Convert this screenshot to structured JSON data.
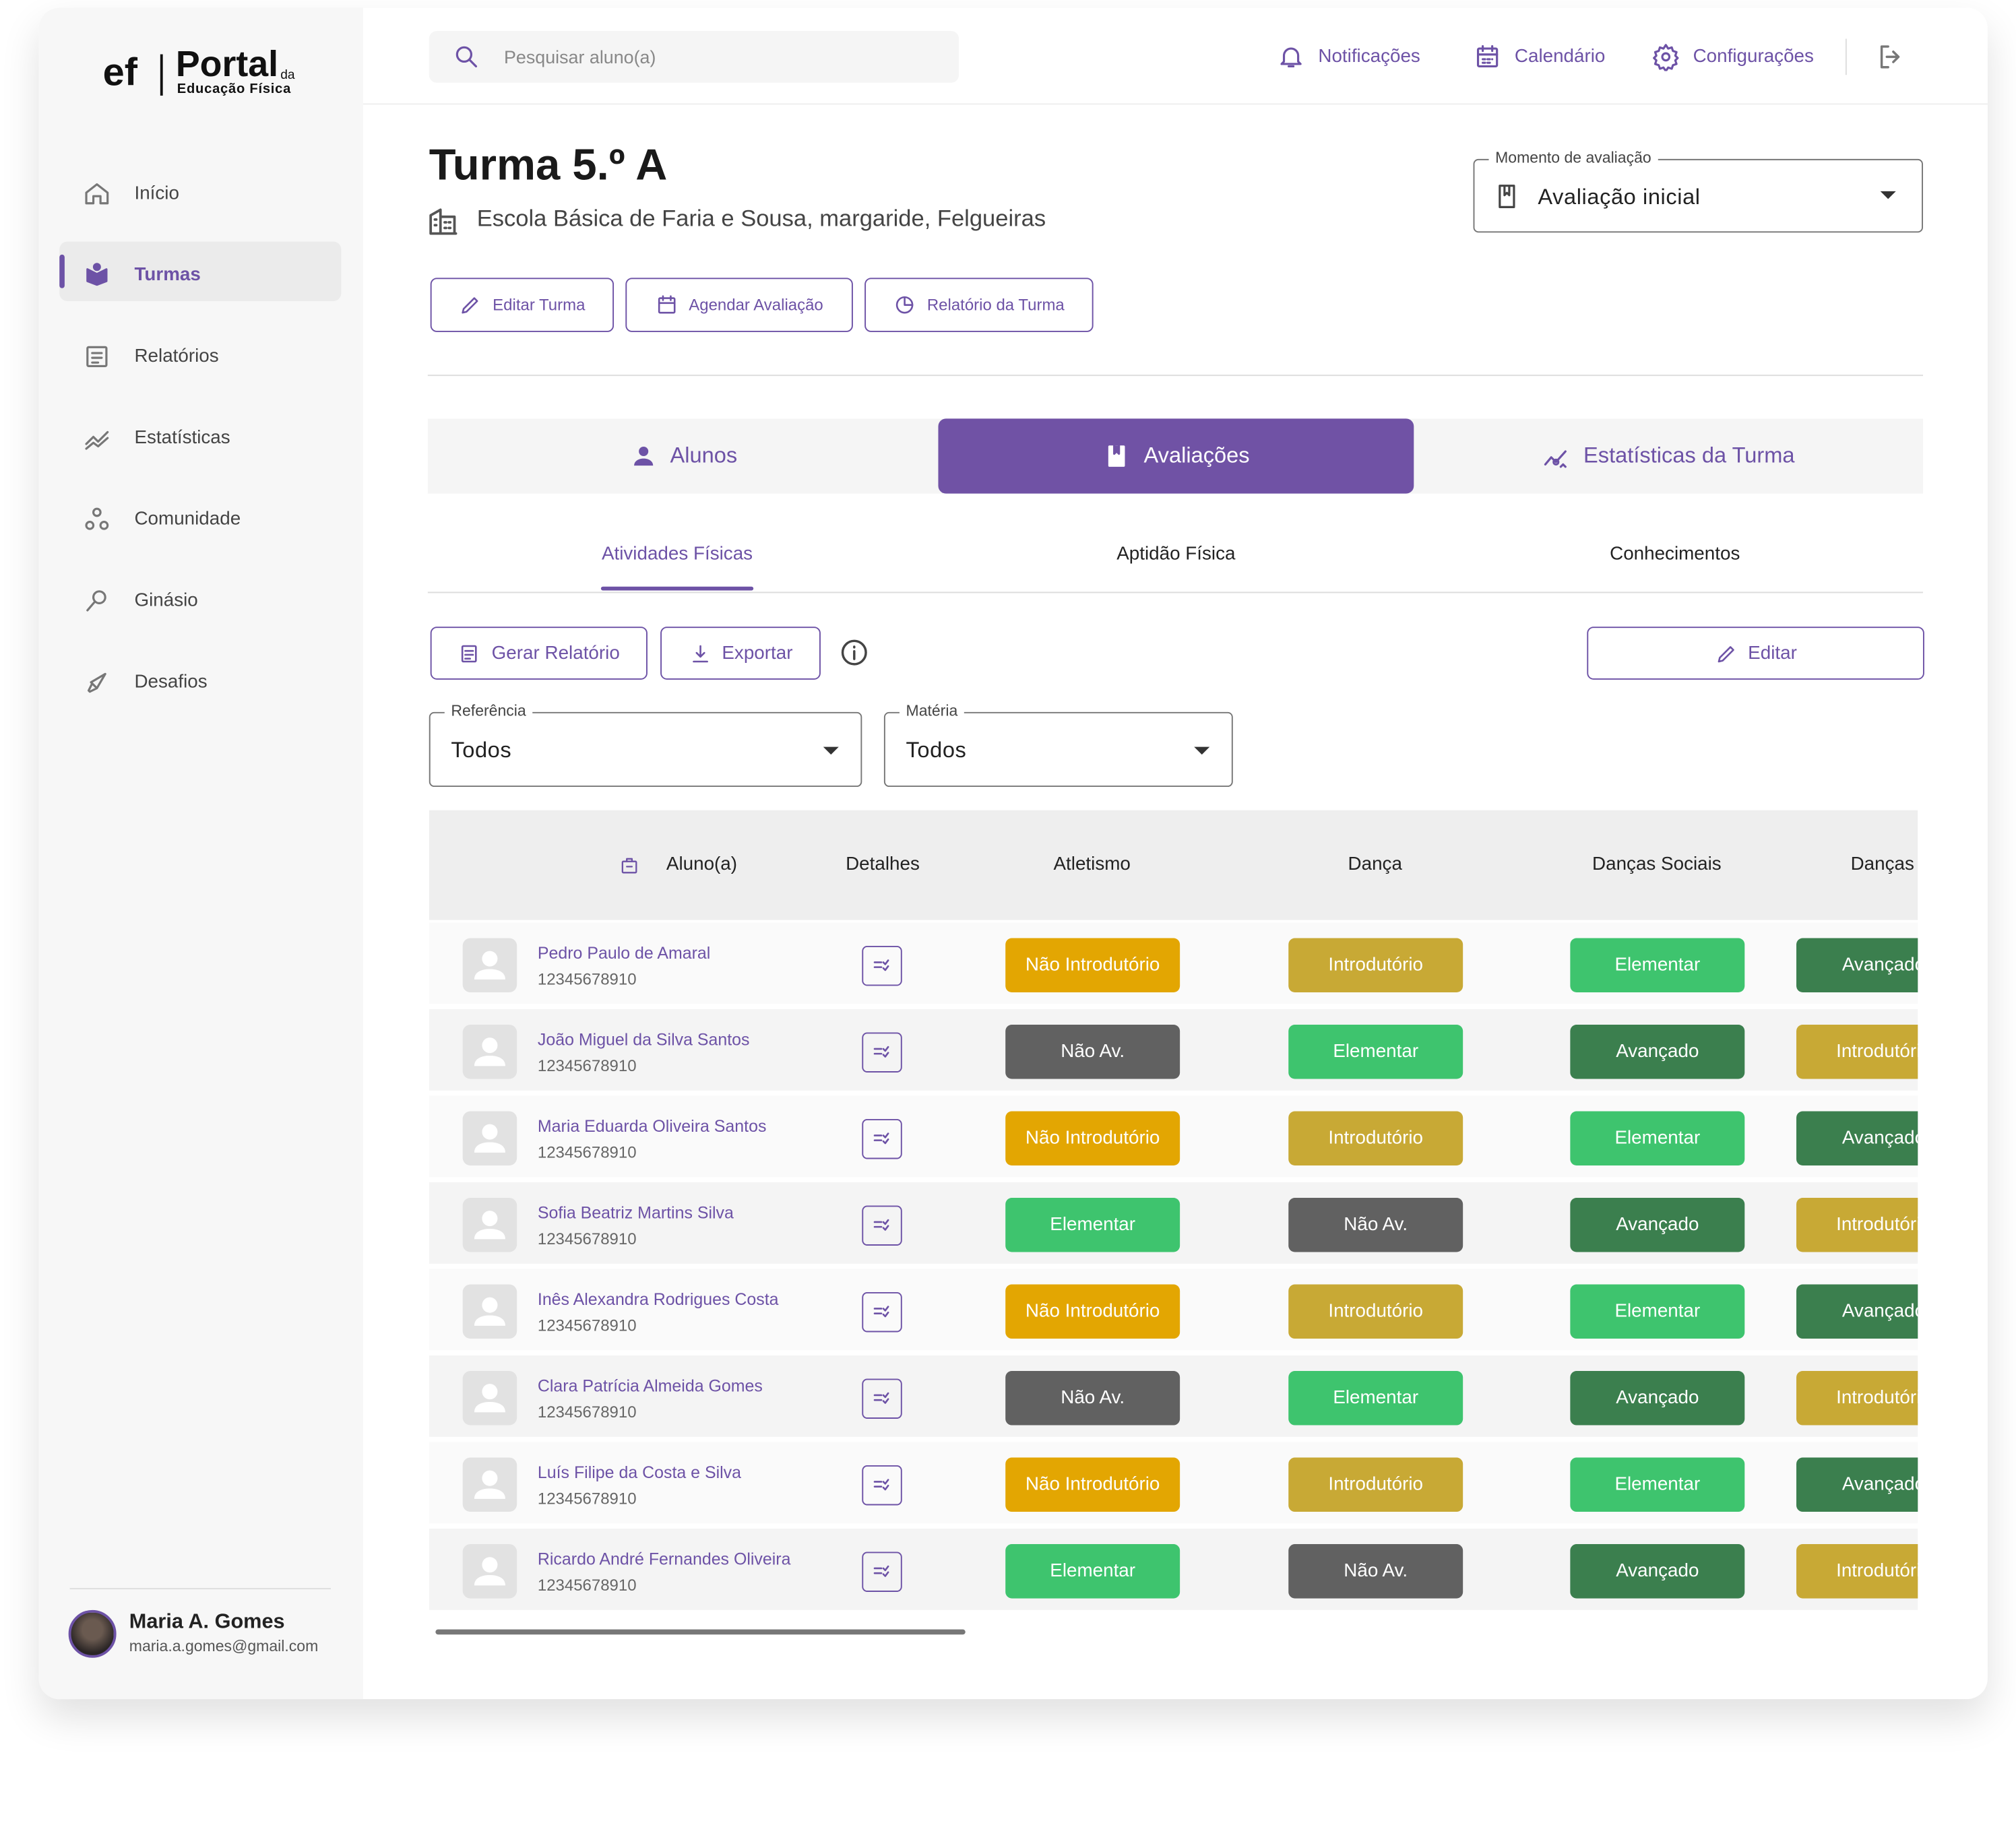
{
  "sidebar": {
    "logo": {
      "brand": "Portal",
      "suffix": "da",
      "sub": "Educação Física"
    },
    "nav": [
      {
        "label": "Início"
      },
      {
        "label": "Turmas",
        "active": true
      },
      {
        "label": "Relatórios"
      },
      {
        "label": "Estatísticas"
      },
      {
        "label": "Comunidade"
      },
      {
        "label": "Ginásio"
      },
      {
        "label": "Desafios"
      }
    ],
    "user": {
      "name": "Maria A. Gomes",
      "email": "maria.a.gomes@gmail.com"
    }
  },
  "topbar": {
    "search_placeholder": "Pesquisar aluno(a)",
    "links": [
      "Notificações",
      "Calendário",
      "Configurações"
    ]
  },
  "header": {
    "title": "Turma 5.º A",
    "school": "Escola Básica de Faria e Sousa, margaride, Felgueiras",
    "moment": {
      "label": "Momento de avaliação",
      "value": "Avaliação inicial"
    },
    "buttons": [
      "Editar Turma",
      "Agendar Avaliação",
      "Relatório da Turma"
    ]
  },
  "tabs": [
    {
      "label": "Alunos"
    },
    {
      "label": "Avaliações",
      "active": true
    },
    {
      "label": "Estatísticas da Turma"
    }
  ],
  "subtabs": [
    {
      "label": "Atividades Físicas",
      "active": true
    },
    {
      "label": "Aptidão Física"
    },
    {
      "label": "Conhecimentos"
    }
  ],
  "toolbar": {
    "buttons": [
      "Gerar Relatório",
      "Exportar"
    ],
    "edit": "Editar"
  },
  "filters": [
    {
      "label": "Referência",
      "value": "Todos"
    },
    {
      "label": "Matéria",
      "value": "Todos"
    }
  ],
  "table": {
    "columns": [
      "Aluno(a)",
      "Detalhes",
      "Atletismo",
      "Dança",
      "Danças Sociais",
      "Danças"
    ],
    "level_colors": {
      "Não Introdutório": "#e3a602",
      "Introdutório": "#c8a935",
      "Elementar": "#3ec46e",
      "Avançado": "#3b7f4e",
      "Não Av.": "#616161"
    },
    "rows": [
      {
        "name": "Pedro Paulo de Amaral",
        "id": "12345678910",
        "levels": [
          "Não Introdutório",
          "Introdutório",
          "Elementar",
          "Avançado"
        ]
      },
      {
        "name": "João Miguel da Silva Santos",
        "id": "12345678910",
        "levels": [
          "Não Av.",
          "Elementar",
          "Avançado",
          "Introdutório"
        ]
      },
      {
        "name": "Maria Eduarda Oliveira Santos",
        "id": "12345678910",
        "levels": [
          "Não Introdutório",
          "Introdutório",
          "Elementar",
          "Avançado"
        ]
      },
      {
        "name": "Sofia Beatriz Martins Silva",
        "id": "12345678910",
        "levels": [
          "Elementar",
          "Não Av.",
          "Avançado",
          "Introdutório"
        ]
      },
      {
        "name": "Inês Alexandra Rodrigues Costa",
        "id": "12345678910",
        "levels": [
          "Não Introdutório",
          "Introdutório",
          "Elementar",
          "Avançado"
        ]
      },
      {
        "name": "Clara Patrícia Almeida Gomes",
        "id": "12345678910",
        "levels": [
          "Não Av.",
          "Elementar",
          "Avançado",
          "Introdutório"
        ]
      },
      {
        "name": "Luís Filipe da Costa e Silva",
        "id": "12345678910",
        "levels": [
          "Não Introdutório",
          "Introdutório",
          "Elementar",
          "Avançado"
        ]
      },
      {
        "name": "Ricardo André Fernandes Oliveira",
        "id": "12345678910",
        "levels": [
          "Elementar",
          "Não Av.",
          "Avançado",
          "Introdutório"
        ]
      }
    ]
  }
}
